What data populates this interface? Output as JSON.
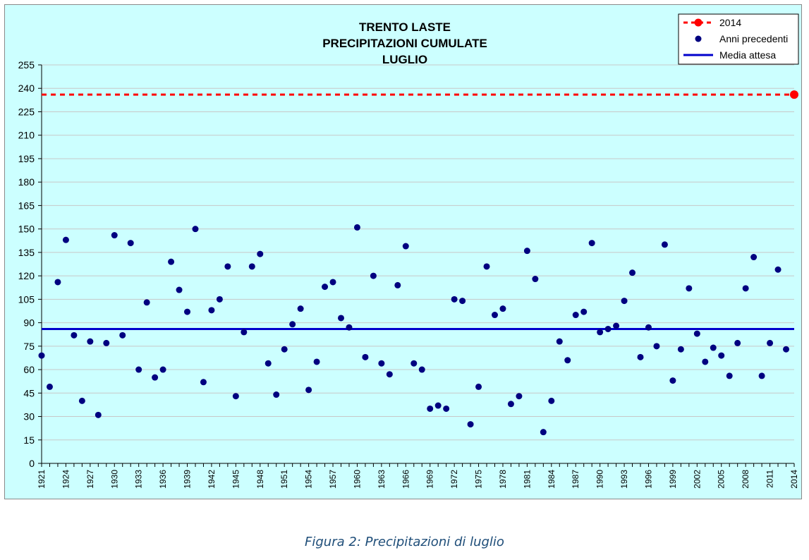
{
  "caption": "Figura 2: Precipitazioni di luglio",
  "colors": {
    "background": "#ccffff",
    "points": "#000080",
    "current": "#ff0000",
    "mean": "#0000cc",
    "grid": "#c8c8c8"
  },
  "chart_data": {
    "type": "scatter",
    "title": [
      "TRENTO LASTE",
      "PRECIPITAZIONI CUMULATE",
      "LUGLIO"
    ],
    "xlabel": "",
    "ylabel": "",
    "ylim": [
      0,
      255
    ],
    "yticks": [
      "0",
      "15",
      "30",
      "45",
      "60",
      "75",
      "90",
      "105",
      "120",
      "135",
      "150",
      "165",
      "180",
      "195",
      "210",
      "225",
      "240",
      "255"
    ],
    "xlim": [
      1921,
      2014
    ],
    "xticks": [
      "1921",
      "1924",
      "1927",
      "1930",
      "1933",
      "1936",
      "1939",
      "1942",
      "1945",
      "1948",
      "1951",
      "1954",
      "1957",
      "1960",
      "1963",
      "1966",
      "1969",
      "1972",
      "1975",
      "1978",
      "1981",
      "1984",
      "1987",
      "1990",
      "1993",
      "1996",
      "1999",
      "2002",
      "2005",
      "2008",
      "2011",
      "2014"
    ],
    "legend_position": "top-right",
    "legend": [
      {
        "label": "2014",
        "style": "dashed-red-dot"
      },
      {
        "label": "Anni precedenti",
        "style": "navy-dot"
      },
      {
        "label": "Media attesa",
        "style": "blue-line"
      }
    ],
    "series": [
      {
        "name": "Anni precedenti",
        "x": [
          1921,
          1922,
          1923,
          1924,
          1925,
          1926,
          1927,
          1928,
          1929,
          1930,
          1931,
          1932,
          1933,
          1934,
          1935,
          1936,
          1937,
          1938,
          1939,
          1940,
          1941,
          1942,
          1943,
          1944,
          1945,
          1946,
          1947,
          1948,
          1949,
          1950,
          1951,
          1952,
          1953,
          1954,
          1955,
          1956,
          1957,
          1958,
          1959,
          1960,
          1961,
          1962,
          1963,
          1964,
          1965,
          1966,
          1967,
          1968,
          1969,
          1970,
          1971,
          1972,
          1973,
          1974,
          1975,
          1976,
          1977,
          1978,
          1979,
          1980,
          1981,
          1982,
          1983,
          1984,
          1985,
          1986,
          1987,
          1988,
          1989,
          1990,
          1991,
          1992,
          1993,
          1994,
          1995,
          1996,
          1997,
          1998,
          1999,
          2000,
          2001,
          2002,
          2003,
          2004,
          2005,
          2006,
          2007,
          2008,
          2009,
          2010,
          2011,
          2012,
          2013
        ],
        "y": [
          69,
          49,
          116,
          143,
          82,
          40,
          78,
          31,
          77,
          146,
          82,
          141,
          60,
          103,
          55,
          60,
          129,
          111,
          97,
          150,
          52,
          98,
          105,
          126,
          43,
          84,
          126,
          134,
          64,
          44,
          73,
          89,
          99,
          47,
          65,
          113,
          116,
          93,
          87,
          151,
          68,
          120,
          64,
          57,
          114,
          139,
          64,
          60,
          35,
          37,
          35,
          105,
          104,
          25,
          49,
          126,
          95,
          99,
          38,
          43,
          136,
          118,
          20,
          40,
          78,
          66,
          95,
          97,
          141,
          84,
          86,
          88,
          104,
          122,
          68,
          87,
          75,
          140,
          53,
          73,
          112,
          83,
          65,
          74,
          69,
          56,
          77,
          112,
          132,
          56,
          77,
          124,
          73
        ]
      },
      {
        "name": "2014",
        "x": [
          2014
        ],
        "y": [
          236
        ],
        "reference_line": 236
      },
      {
        "name": "Media attesa",
        "value": 86
      }
    ]
  }
}
